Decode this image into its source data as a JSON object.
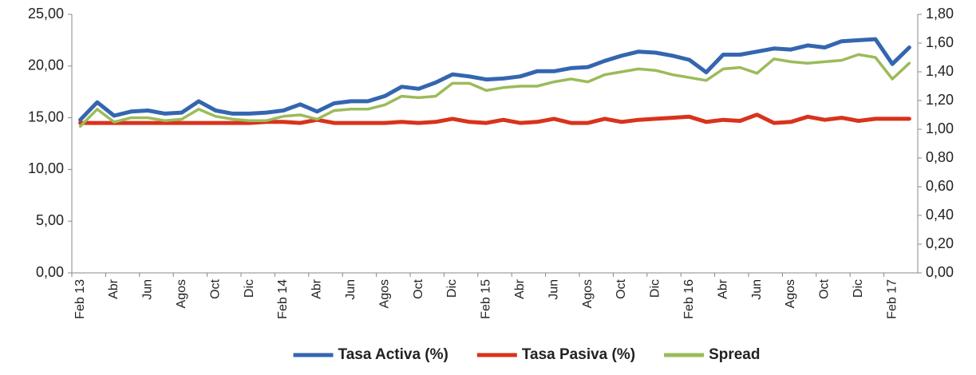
{
  "chart_data": {
    "type": "line",
    "categories": [
      "Feb 13",
      null,
      "Abr",
      null,
      "Jun",
      null,
      "Agos",
      null,
      "Oct",
      null,
      "Dic",
      null,
      "Feb 14",
      null,
      "Abr",
      null,
      "Jun",
      null,
      "Agos",
      null,
      "Oct",
      null,
      "Dic",
      null,
      "Feb 15",
      null,
      "Abr",
      null,
      "Jun",
      null,
      "Agos",
      null,
      "Oct",
      null,
      "Dic",
      null,
      "Feb 16",
      null,
      "Abr",
      null,
      "Jun",
      null,
      "Agos",
      null,
      "Oct",
      null,
      "Dic",
      null,
      "Feb 17",
      null
    ],
    "series": [
      {
        "name": "Tasa Activa (%)",
        "color": "#3466b0",
        "values": [
          14.8,
          16.5,
          15.2,
          15.6,
          15.7,
          15.4,
          15.5,
          16.6,
          15.7,
          15.4,
          15.4,
          15.5,
          15.7,
          16.3,
          15.6,
          16.4,
          16.6,
          16.6,
          17.1,
          18.0,
          17.8,
          18.4,
          19.2,
          19.0,
          18.7,
          18.8,
          19.0,
          19.5,
          19.5,
          19.8,
          19.9,
          20.5,
          21.0,
          21.4,
          21.3,
          21.0,
          20.6,
          19.4,
          21.1,
          21.1,
          21.4,
          21.7,
          21.6,
          22.0,
          21.8,
          22.4,
          22.5,
          22.6,
          20.2,
          21.8
        ]
      },
      {
        "name": "Tasa Pasiva (%)",
        "color": "#d8331c",
        "values": [
          14.5,
          14.5,
          14.5,
          14.5,
          14.5,
          14.5,
          14.5,
          14.5,
          14.5,
          14.5,
          14.5,
          14.6,
          14.6,
          14.5,
          14.8,
          14.5,
          14.5,
          14.5,
          14.5,
          14.6,
          14.5,
          14.6,
          14.9,
          14.6,
          14.5,
          14.8,
          14.5,
          14.6,
          14.9,
          14.5,
          14.5,
          14.9,
          14.6,
          14.8,
          14.9,
          15.0,
          15.1,
          14.6,
          14.8,
          14.7,
          15.3,
          14.5,
          14.6,
          15.1,
          14.8,
          15.0,
          14.7,
          14.9,
          14.9,
          14.9
        ]
      },
      {
        "name": "Spread",
        "color": "#9bbb59",
        "axis": "y2",
        "values": [
          1.02,
          1.14,
          1.05,
          1.08,
          1.08,
          1.06,
          1.07,
          1.14,
          1.09,
          1.07,
          1.06,
          1.06,
          1.09,
          1.1,
          1.07,
          1.13,
          1.14,
          1.14,
          1.17,
          1.23,
          1.22,
          1.23,
          1.32,
          1.32,
          1.27,
          1.29,
          1.3,
          1.3,
          1.33,
          1.35,
          1.33,
          1.38,
          1.4,
          1.42,
          1.41,
          1.38,
          1.36,
          1.34,
          1.42,
          1.43,
          1.39,
          1.49,
          1.47,
          1.46,
          1.47,
          1.48,
          1.52,
          1.5,
          1.35,
          1.46
        ]
      }
    ],
    "ylim": [
      0,
      25
    ],
    "yticks": [
      {
        "value": 0,
        "label": "0,00"
      },
      {
        "value": 5,
        "label": "5,00"
      },
      {
        "value": 10,
        "label": "10,00"
      },
      {
        "value": 15,
        "label": "15,00"
      },
      {
        "value": 20,
        "label": "20,00"
      },
      {
        "value": 25,
        "label": "25,00"
      }
    ],
    "y2lim": [
      0,
      1.8
    ],
    "y2ticks": [
      {
        "value": 0,
        "label": "0,00"
      },
      {
        "value": 0.2,
        "label": "0,20"
      },
      {
        "value": 0.4,
        "label": "0,40"
      },
      {
        "value": 0.6,
        "label": "0,60"
      },
      {
        "value": 0.8,
        "label": "0,80"
      },
      {
        "value": 1.0,
        "label": "1,00"
      },
      {
        "value": 1.2,
        "label": "1,20"
      },
      {
        "value": 1.4,
        "label": "1,40"
      },
      {
        "value": 1.6,
        "label": "1,60"
      },
      {
        "value": 1.8,
        "label": "1,80"
      }
    ],
    "grid": false,
    "legend": "bottom"
  }
}
